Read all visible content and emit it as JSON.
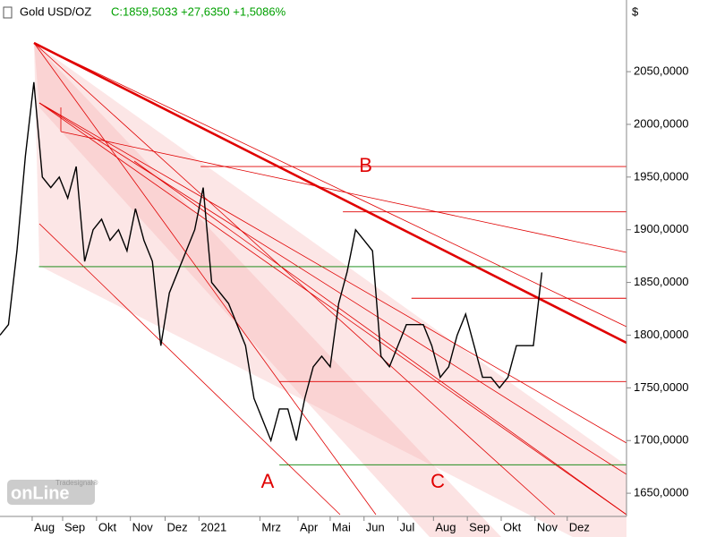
{
  "chart_data": {
    "type": "line",
    "title": "Gold USD/OZ",
    "quote": "C:1859,5033 +27,6350 +1,5086%",
    "unit": "$",
    "logo": "onLine",
    "logo_sub": "Tradesignal®",
    "color": "#000000",
    "x": [
      0,
      1,
      2,
      3,
      4,
      5,
      6,
      7,
      8,
      9,
      10,
      11,
      12,
      13,
      14,
      15,
      16,
      17,
      18,
      19,
      20,
      21,
      22,
      23,
      24,
      25,
      26,
      27,
      28,
      29,
      30,
      31,
      32,
      33,
      34,
      35,
      36,
      37,
      38,
      39,
      40,
      41,
      42,
      43,
      44,
      45,
      46,
      47,
      48,
      49,
      50,
      51,
      52,
      53,
      54,
      55,
      56,
      57,
      58,
      59,
      60,
      61,
      62,
      63,
      64
    ],
    "values": [
      1800,
      1810,
      1880,
      1970,
      2040,
      1950,
      1940,
      1950,
      1930,
      1960,
      1870,
      1900,
      1910,
      1890,
      1900,
      1880,
      1920,
      1890,
      1870,
      1790,
      1840,
      1860,
      1880,
      1900,
      1940,
      1850,
      1840,
      1830,
      1810,
      1790,
      1740,
      1720,
      1700,
      1730,
      1730,
      1700,
      1740,
      1770,
      1780,
      1770,
      1830,
      1860,
      1900,
      1890,
      1880,
      1780,
      1770,
      1790,
      1810,
      1810,
      1810,
      1790,
      1760,
      1770,
      1800,
      1820,
      1790,
      1760,
      1760,
      1750,
      1760,
      1790,
      1790,
      1790,
      1859.5033
    ],
    "xlim": [
      0,
      74
    ],
    "xticks": [
      {
        "value": 3.8,
        "label": "Aug"
      },
      {
        "value": 7.4,
        "label": "Sep"
      },
      {
        "value": 11.4,
        "label": "Okt"
      },
      {
        "value": 15.4,
        "label": "Nov"
      },
      {
        "value": 19.5,
        "label": "Dez"
      },
      {
        "value": 23.5,
        "label": "2021"
      },
      {
        "value": 30.7,
        "label": "Mrz"
      },
      {
        "value": 35.2,
        "label": "Apr"
      },
      {
        "value": 39,
        "label": "Mai"
      },
      {
        "value": 43,
        "label": "Jun"
      },
      {
        "value": 47,
        "label": "Jul"
      },
      {
        "value": 51.2,
        "label": "Aug"
      },
      {
        "value": 55.2,
        "label": "Sep"
      },
      {
        "value": 59.2,
        "label": "Okt"
      },
      {
        "value": 63.2,
        "label": "Nov"
      },
      {
        "value": 67,
        "label": "Dez"
      }
    ],
    "ylim": [
      1628,
      2118
    ],
    "yticks": [
      {
        "value": 1650,
        "label": "1650,0000"
      },
      {
        "value": 1700,
        "label": "1700,0000"
      },
      {
        "value": 1750,
        "label": "1750,0000"
      },
      {
        "value": 1800,
        "label": "1800,0000"
      },
      {
        "value": 1850,
        "label": "1850,0000"
      },
      {
        "value": 1900,
        "label": "1900,0000"
      },
      {
        "value": 1950,
        "label": "1950,0000"
      },
      {
        "value": 2000,
        "label": "2000,0000"
      },
      {
        "value": 2050,
        "label": "2050,0000"
      }
    ],
    "levels": [
      {
        "value": 1865,
        "from": 4.6,
        "color": "#008000"
      },
      {
        "value": 1677,
        "from": 33,
        "color": "#008000"
      },
      {
        "value": 1960,
        "from": 23.7,
        "color": "#e00000"
      },
      {
        "value": 1917,
        "from": 40.5,
        "color": "#e00000"
      },
      {
        "value": 1835,
        "from": 48.6,
        "color": "#e00000"
      },
      {
        "value": 1756,
        "from": 33,
        "color": "#e00000"
      }
    ],
    "annotations": [
      {
        "text": "A",
        "x": 31.6,
        "y": 1660
      },
      {
        "text": "B",
        "x": 43.2,
        "y": 1960
      },
      {
        "text": "C",
        "x": 51.7,
        "y": 1660
      }
    ]
  }
}
